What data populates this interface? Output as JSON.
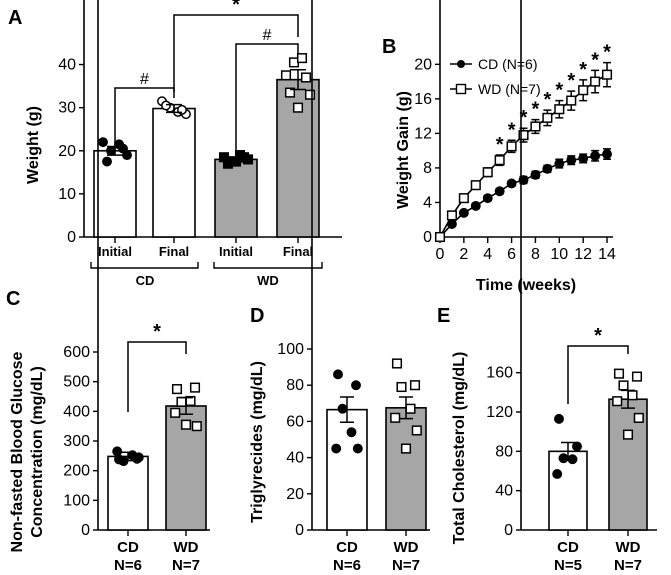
{
  "figure_labels": [
    "A",
    "B",
    "C",
    "D",
    "E"
  ],
  "colors": {
    "cd_bar": "#ffffff",
    "wd_bar": "#a6a6a6",
    "ink": "#000000"
  },
  "chart_data": [
    {
      "panel": "A",
      "type": "bar",
      "ylabel": "Weight (g)",
      "ylim": [
        0,
        45
      ],
      "yticks": [
        0,
        10,
        20,
        30,
        40
      ],
      "categories": [
        "Initial",
        "Final",
        "Initial",
        "Final"
      ],
      "groups": [
        "CD",
        "CD",
        "WD",
        "WD"
      ],
      "group_labels": [
        "CD",
        "WD"
      ],
      "values": [
        20,
        29.8,
        18,
        36.5
      ],
      "errors": [
        1.0,
        0.9,
        0.6,
        2.3
      ],
      "points": [
        [
          22,
          20,
          21.5,
          19,
          17.5,
          20.5
        ],
        [
          31.5,
          30,
          29,
          28.5,
          30.5,
          29.5
        ],
        [
          18.5,
          17.5,
          19,
          18,
          17,
          18.5,
          17.5
        ],
        [
          37.5,
          40.5,
          41.5,
          33,
          33.5,
          37,
          30
        ]
      ],
      "fill": [
        "white",
        "white",
        "gray",
        "gray"
      ],
      "marker": [
        "circle-filled",
        "circle-open",
        "square-filled",
        "square-open"
      ],
      "annotations": [
        {
          "text": "#",
          "between": [
            0,
            1
          ]
        },
        {
          "text": "#",
          "between": [
            2,
            3
          ]
        },
        {
          "text": "*",
          "between": [
            1,
            3
          ]
        }
      ]
    },
    {
      "panel": "B",
      "type": "line",
      "xlabel": "Time (weeks)",
      "ylabel": "Weight Gain (g)",
      "xlim": [
        0,
        14.5
      ],
      "ylim": [
        0,
        20.5
      ],
      "xticks": [
        0,
        2,
        4,
        6,
        8,
        10,
        12,
        14
      ],
      "yticks": [
        0,
        4,
        8,
        12,
        16,
        20
      ],
      "x": [
        0,
        1,
        2,
        3,
        4,
        5,
        6,
        7,
        8,
        9,
        10,
        11,
        12,
        13,
        14
      ],
      "series": [
        {
          "name": "CD (N=6)",
          "marker": "circle-filled",
          "values": [
            0,
            1.5,
            2.8,
            3.6,
            4.5,
            5.3,
            6.2,
            6.6,
            7.2,
            7.9,
            8.5,
            8.9,
            9.1,
            9.4,
            9.6
          ],
          "errors": [
            0.1,
            0.2,
            0.2,
            0.3,
            0.3,
            0.3,
            0.3,
            0.4,
            0.4,
            0.4,
            0.5,
            0.5,
            0.5,
            0.6,
            0.6
          ]
        },
        {
          "name": "WD (N=7)",
          "marker": "square-open",
          "values": [
            0,
            2.5,
            4.5,
            6.0,
            7.5,
            8.9,
            10.5,
            11.8,
            12.8,
            13.8,
            14.8,
            15.8,
            17.0,
            18.0,
            18.8
          ],
          "errors": [
            0.1,
            0.3,
            0.3,
            0.4,
            0.5,
            0.6,
            0.7,
            0.8,
            0.8,
            0.9,
            1.0,
            1.1,
            1.2,
            1.3,
            1.4
          ]
        }
      ],
      "significance": {
        "symbol": "*",
        "weeks": [
          5,
          6,
          7,
          8,
          9,
          10,
          11,
          12,
          13,
          14
        ]
      }
    },
    {
      "panel": "C",
      "type": "bar",
      "ylabel_lines": [
        "Non-fasted Blood Glucose",
        "Concentration (mg/dL)"
      ],
      "ylim": [
        0,
        600
      ],
      "yticks": [
        0,
        100,
        200,
        300,
        400,
        500,
        600
      ],
      "categories": [
        "CD",
        "WD"
      ],
      "n_labels": [
        "N=6",
        "N=7"
      ],
      "values": [
        248,
        418
      ],
      "errors": [
        14,
        28
      ],
      "points": [
        [
          238,
          240,
          232,
          252,
          265,
          245
        ],
        [
          475,
          480,
          432,
          435,
          395,
          350,
          355
        ]
      ],
      "fill": [
        "white",
        "gray"
      ],
      "marker": [
        "circle-filled",
        "square-open"
      ],
      "annotations": [
        {
          "text": "*",
          "between": [
            0,
            1
          ]
        }
      ]
    },
    {
      "panel": "D",
      "type": "bar",
      "ylabel": "Triglyrecides (mg/dL)",
      "ylim": [
        0,
        100
      ],
      "yticks": [
        0,
        20,
        40,
        60,
        80,
        100
      ],
      "categories": [
        "CD",
        "WD"
      ],
      "n_labels": [
        "N=6",
        "N=7"
      ],
      "values": [
        66.5,
        67.5
      ],
      "errors": [
        7,
        6
      ],
      "points": [
        [
          86,
          80,
          67,
          54,
          45,
          45
        ],
        [
          92,
          80,
          79,
          67,
          62,
          55,
          45
        ]
      ],
      "fill": [
        "white",
        "gray"
      ],
      "marker": [
        "circle-filled",
        "square-open"
      ],
      "annotations": []
    },
    {
      "panel": "E",
      "type": "bar",
      "ylabel": "Total Cholesterol (mg/dL)",
      "ylim": [
        0,
        180
      ],
      "yticks": [
        0,
        40,
        80,
        120,
        160
      ],
      "categories": [
        "CD",
        "WD"
      ],
      "n_labels": [
        "N=5",
        "N=7"
      ],
      "values": [
        80,
        133
      ],
      "errors": [
        9,
        9
      ],
      "points": [
        [
          113,
          85,
          73,
          72,
          57
        ],
        [
          159,
          156,
          147,
          137,
          131,
          114,
          97
        ]
      ],
      "fill": [
        "white",
        "gray"
      ],
      "marker": [
        "circle-filled",
        "square-open"
      ],
      "annotations": [
        {
          "text": "*",
          "between": [
            0,
            1
          ]
        }
      ]
    }
  ]
}
